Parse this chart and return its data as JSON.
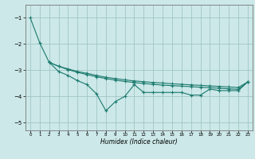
{
  "title": "",
  "xlabel": "Humidex (Indice chaleur)",
  "bg_color": "#cce8e8",
  "grid_color": "#9bbfbf",
  "line_color": "#1a7a6e",
  "xlim": [
    -0.5,
    23.5
  ],
  "ylim": [
    -5.3,
    -0.5
  ],
  "xticks": [
    0,
    1,
    2,
    3,
    4,
    5,
    6,
    7,
    8,
    9,
    10,
    11,
    12,
    13,
    14,
    15,
    16,
    17,
    18,
    19,
    20,
    21,
    22,
    23
  ],
  "yticks": [
    -5,
    -4,
    -3,
    -2,
    -1
  ],
  "line1_x": [
    0,
    1,
    2,
    3,
    4,
    5,
    6,
    7,
    8,
    9,
    10,
    11,
    12,
    13,
    14,
    15,
    16,
    17,
    18,
    19,
    20,
    21,
    22,
    23
  ],
  "line1_y": [
    -1.0,
    -1.95,
    -2.7,
    -2.85,
    -2.95,
    -3.05,
    -3.12,
    -3.2,
    -3.27,
    -3.32,
    -3.37,
    -3.41,
    -3.44,
    -3.47,
    -3.49,
    -3.52,
    -3.54,
    -3.56,
    -3.58,
    -3.6,
    -3.62,
    -3.64,
    -3.66,
    -3.45
  ],
  "line2_x": [
    2,
    3,
    4,
    5,
    6,
    7,
    8,
    9,
    10,
    11,
    12,
    13,
    14,
    15,
    16,
    17,
    18,
    19,
    20,
    21,
    22,
    23
  ],
  "line2_y": [
    -2.7,
    -2.85,
    -2.98,
    -3.08,
    -3.17,
    -3.25,
    -3.32,
    -3.38,
    -3.43,
    -3.47,
    -3.51,
    -3.54,
    -3.57,
    -3.59,
    -3.61,
    -3.63,
    -3.65,
    -3.67,
    -3.69,
    -3.71,
    -3.73,
    -3.45
  ],
  "line3_x": [
    2,
    3,
    4,
    5,
    6,
    7,
    8,
    9,
    10,
    11,
    12,
    13,
    14,
    15,
    16,
    17,
    18,
    19,
    20,
    21,
    22,
    23
  ],
  "line3_y": [
    -2.7,
    -3.05,
    -3.2,
    -3.4,
    -3.55,
    -3.9,
    -4.55,
    -4.2,
    -4.0,
    -3.55,
    -3.85,
    -3.85,
    -3.85,
    -3.85,
    -3.85,
    -3.95,
    -3.95,
    -3.72,
    -3.78,
    -3.78,
    -3.78,
    -3.45
  ]
}
